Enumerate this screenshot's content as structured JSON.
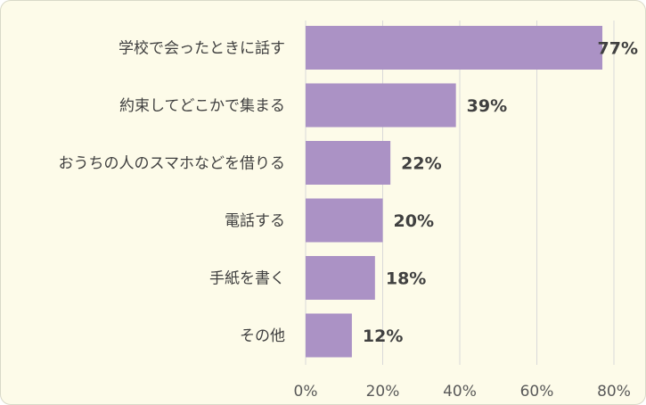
{
  "chart_data": {
    "type": "bar",
    "orientation": "horizontal",
    "categories": [
      "学校で会ったときに話す",
      "約束してどこかで集まる",
      "おうちの人のスマホなどを借りる",
      "電話する",
      "手紙を書く",
      "その他"
    ],
    "values": [
      77,
      39,
      22,
      20,
      18,
      12
    ],
    "value_labels": [
      "77%",
      "39%",
      "22%",
      "20%",
      "18%",
      "12%"
    ],
    "x_ticks": [
      "0%",
      "20%",
      "40%",
      "60%",
      "80%"
    ],
    "xlim": [
      0,
      80
    ],
    "grid": true,
    "title": "",
    "xlabel": "",
    "ylabel": "",
    "bar_color": "#ab92c5"
  }
}
